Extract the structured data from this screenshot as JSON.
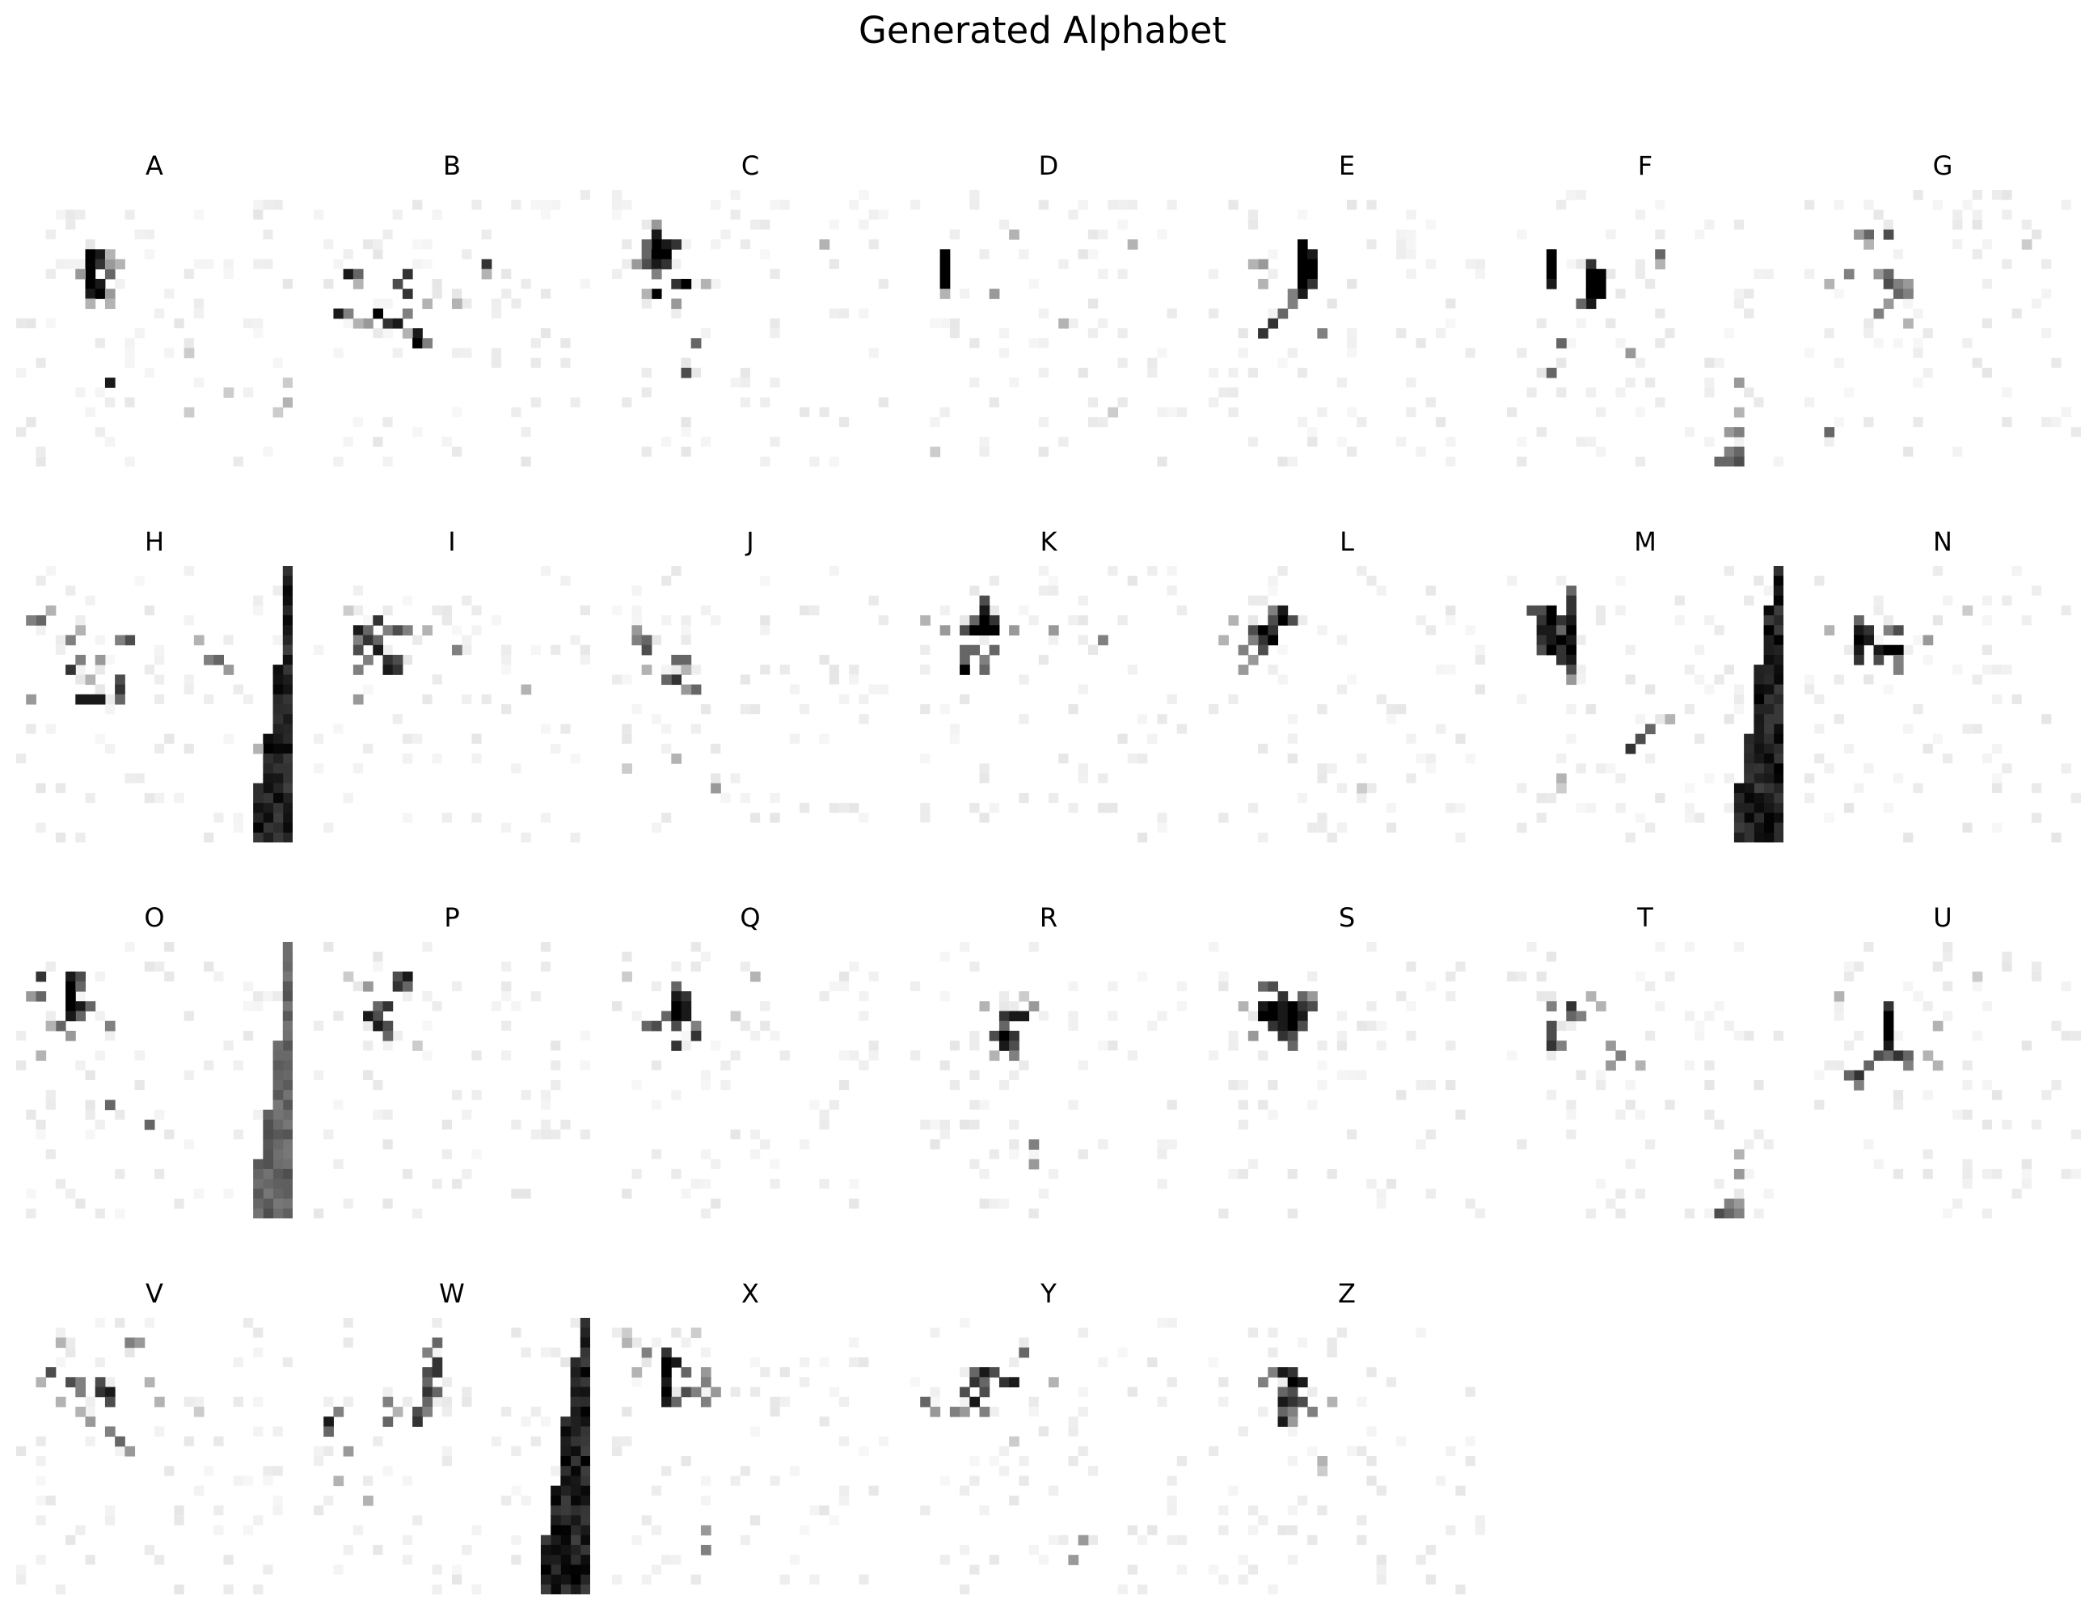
{
  "title": "Generated Alphabet",
  "panels": [
    {
      "label": "A"
    },
    {
      "label": "B"
    },
    {
      "label": "C"
    },
    {
      "label": "D"
    },
    {
      "label": "E"
    },
    {
      "label": "F"
    },
    {
      "label": "G"
    },
    {
      "label": "H"
    },
    {
      "label": "I"
    },
    {
      "label": "J"
    },
    {
      "label": "K"
    },
    {
      "label": "L"
    },
    {
      "label": "M"
    },
    {
      "label": "N"
    },
    {
      "label": "O"
    },
    {
      "label": "P"
    },
    {
      "label": "Q"
    },
    {
      "label": "R"
    },
    {
      "label": "S"
    },
    {
      "label": "T"
    },
    {
      "label": "U"
    },
    {
      "label": "V"
    },
    {
      "label": "W"
    },
    {
      "label": "X"
    },
    {
      "label": "Y"
    },
    {
      "label": "Z"
    }
  ],
  "colors": {
    "background": "#ffffff",
    "ink": "#000000"
  }
}
